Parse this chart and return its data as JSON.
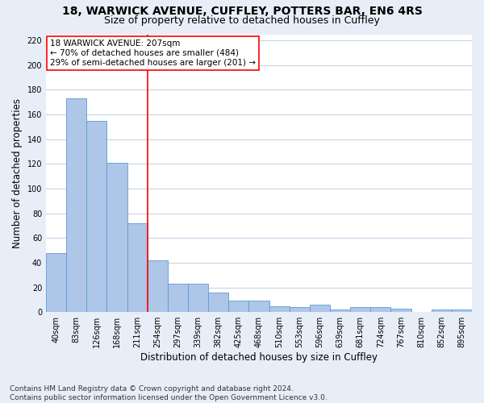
{
  "title_line1": "18, WARWICK AVENUE, CUFFLEY, POTTERS BAR, EN6 4RS",
  "title_line2": "Size of property relative to detached houses in Cuffley",
  "xlabel": "Distribution of detached houses by size in Cuffley",
  "ylabel": "Number of detached properties",
  "footnote": "Contains HM Land Registry data © Crown copyright and database right 2024.\nContains public sector information licensed under the Open Government Licence v3.0.",
  "bar_labels": [
    "40sqm",
    "83sqm",
    "126sqm",
    "168sqm",
    "211sqm",
    "254sqm",
    "297sqm",
    "339sqm",
    "382sqm",
    "425sqm",
    "468sqm",
    "510sqm",
    "553sqm",
    "596sqm",
    "639sqm",
    "681sqm",
    "724sqm",
    "767sqm",
    "810sqm",
    "852sqm",
    "895sqm"
  ],
  "bar_values": [
    48,
    173,
    155,
    121,
    72,
    42,
    23,
    23,
    16,
    9,
    9,
    5,
    4,
    6,
    2,
    4,
    4,
    3,
    0,
    2,
    2
  ],
  "bar_color": "#aec6e8",
  "bar_edgecolor": "#5b9bd5",
  "vline_x": 4.5,
  "vline_color": "red",
  "annotation_text": "18 WARWICK AVENUE: 207sqm\n← 70% of detached houses are smaller (484)\n29% of semi-detached houses are larger (201) →",
  "annotation_box_color": "white",
  "annotation_box_edgecolor": "red",
  "ylim": [
    0,
    225
  ],
  "yticks": [
    0,
    20,
    40,
    60,
    80,
    100,
    120,
    140,
    160,
    180,
    200,
    220
  ],
  "bg_color": "#e8eef8",
  "plot_bg_color": "white",
  "grid_color": "#c8d4e8",
  "title_fontsize": 10,
  "subtitle_fontsize": 9,
  "tick_fontsize": 7,
  "ylabel_fontsize": 8.5,
  "xlabel_fontsize": 8.5,
  "footnote_fontsize": 6.5,
  "annotation_fontsize": 7.5
}
